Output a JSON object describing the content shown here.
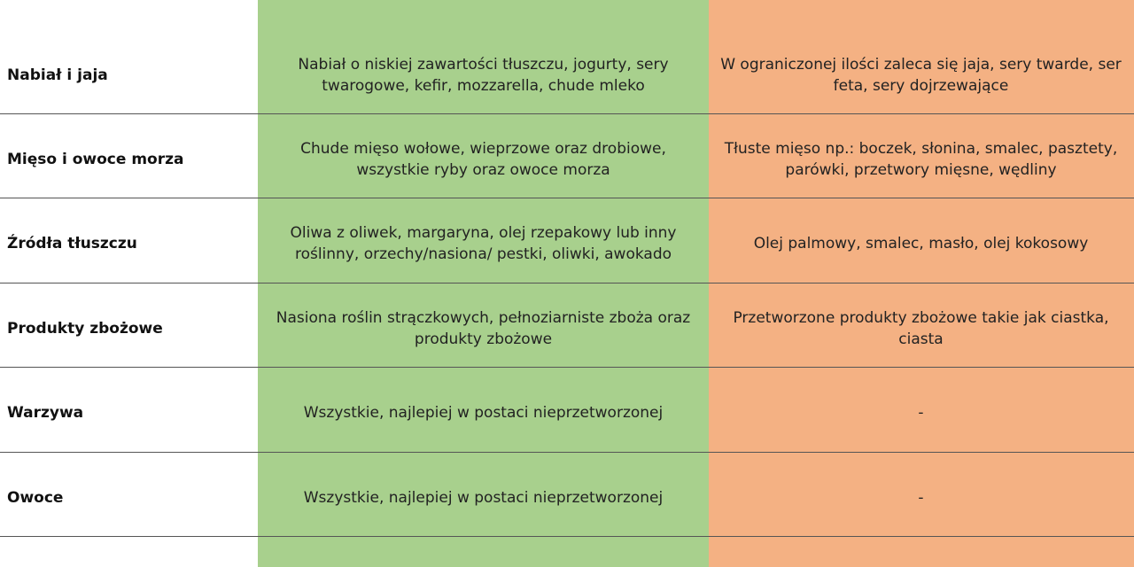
{
  "rows": [
    {
      "category": "Nabiał i jaja",
      "recommended": "Nabiał o niskiej zawartości tłuszczu, jogurty, sery twarogowe, kefir, mozzarella, chude mleko",
      "limited": "W ograniczonej ilości zaleca się jaja, sery twarde, ser feta, sery dojrzewające"
    },
    {
      "category": "Mięso i owoce morza",
      "recommended": "Chude mięso wołowe, wieprzowe oraz drobiowe, wszystkie ryby oraz owoce morza",
      "limited": "Tłuste mięso np.: boczek, słonina, smalec, pasztety, parówki, przetwory mięsne, wędliny"
    },
    {
      "category": "Źródła tłuszczu",
      "recommended": "Oliwa z oliwek, margaryna, olej rzepakowy lub inny roślinny, orzechy/nasiona/ pestki, oliwki, awokado",
      "limited": "Olej palmowy, smalec, masło, olej kokosowy"
    },
    {
      "category": "Produkty zbożowe",
      "recommended": "Nasiona roślin strączkowych, pełnoziarniste zboża oraz produkty zbożowe",
      "limited": "Przetworzone produkty zbożowe takie jak ciastka, ciasta"
    },
    {
      "category": "Warzywa",
      "recommended": "Wszystkie, najlepiej w postaci nieprzetworzonej",
      "limited": "-"
    },
    {
      "category": "Owoce",
      "recommended": "Wszystkie, najlepiej w postaci nieprzetworzonej",
      "limited": "-"
    }
  ],
  "colors": {
    "recommended_bg": "#a8d08d",
    "limited_bg": "#f4b183",
    "divider": "#555555"
  }
}
